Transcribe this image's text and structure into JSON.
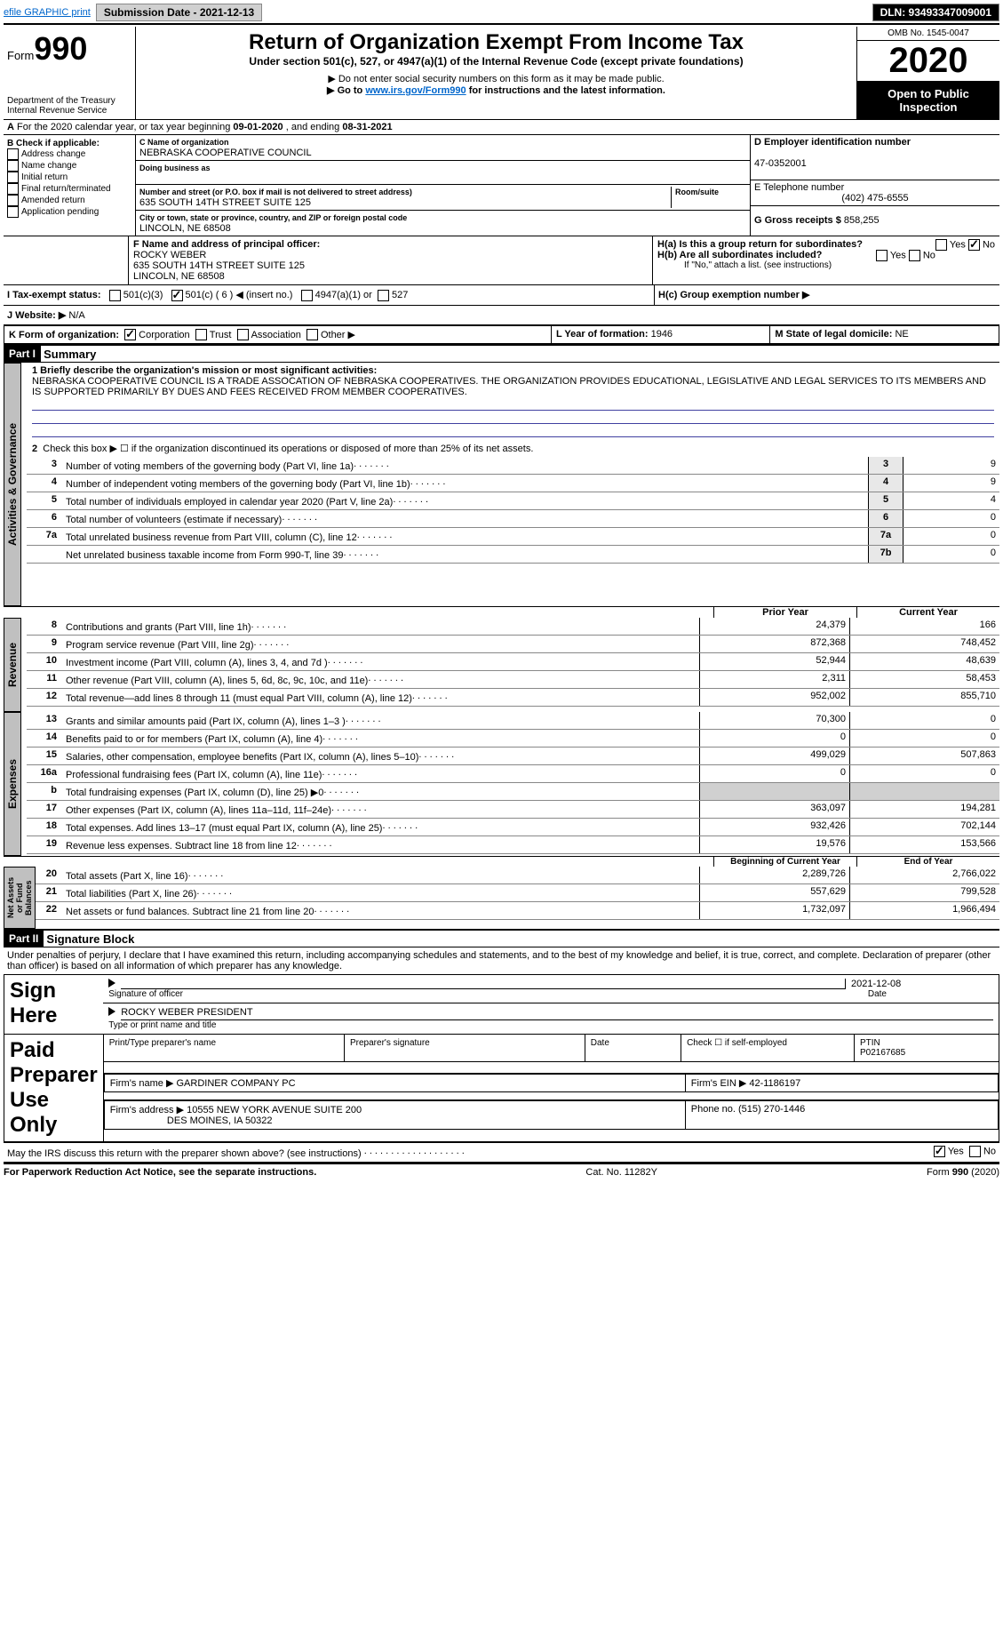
{
  "topbar": {
    "efile": "efile GRAPHIC print",
    "submission_label": "Submission Date - 2021-12-13",
    "dln_label": "DLN: 93493347009001"
  },
  "header": {
    "form_label": "Form",
    "form_number": "990",
    "dept1": "Department of the Treasury",
    "dept2": "Internal Revenue Service",
    "title": "Return of Organization Exempt From Income Tax",
    "subtitle": "Under section 501(c), 527, or 4947(a)(1) of the Internal Revenue Code (except private foundations)",
    "note1": "▶ Do not enter social security numbers on this form as it may be made public.",
    "note2_pre": "▶ Go to ",
    "note2_link": "www.irs.gov/Form990",
    "note2_post": " for instructions and the latest information.",
    "omb": "OMB No. 1545-0047",
    "year": "2020",
    "open_pub": "Open to Public Inspection"
  },
  "period": {
    "text_pre": "For the 2020 calendar year, or tax year beginning ",
    "begin": "09-01-2020",
    "text_mid": " , and ending ",
    "end": "08-31-2021",
    "label_a": "A"
  },
  "boxB": {
    "title": "B Check if applicable:",
    "opts": [
      "Address change",
      "Name change",
      "Initial return",
      "Final return/terminated",
      "Amended return",
      "Application pending"
    ]
  },
  "boxC": {
    "label": "C Name of organization",
    "name": "NEBRASKA COOPERATIVE COUNCIL",
    "dba_label": "Doing business as",
    "addr_label": "Number and street (or P.O. box if mail is not delivered to street address)",
    "room_label": "Room/suite",
    "addr": "635 SOUTH 14TH STREET SUITE 125",
    "city_label": "City or town, state or province, country, and ZIP or foreign postal code",
    "city": "LINCOLN, NE  68508"
  },
  "boxD": {
    "label": "D Employer identification number",
    "ein": "47-0352001"
  },
  "boxE": {
    "label": "E Telephone number",
    "phone": "(402) 475-6555"
  },
  "boxG": {
    "label": "G Gross receipts $",
    "val": "858,255"
  },
  "boxF": {
    "label": "F Name and address of principal officer:",
    "name": "ROCKY WEBER",
    "addr1": "635 SOUTH 14TH STREET SUITE 125",
    "addr2": "LINCOLN, NE  68508"
  },
  "boxH": {
    "ha": "H(a)  Is this a group return for subordinates?",
    "hb": "H(b)  Are all subordinates included?",
    "hb_note": "If \"No,\" attach a list. (see instructions)",
    "hc": "H(c)  Group exemption number ▶",
    "yes": "Yes",
    "no": "No"
  },
  "boxI": {
    "label": "I   Tax-exempt status:",
    "o1": "501(c)(3)",
    "o2": "501(c) ( 6 ) ◀ (insert no.)",
    "o3": "4947(a)(1) or",
    "o4": "527"
  },
  "boxJ": {
    "label": "J   Website: ▶",
    "val": "N/A"
  },
  "boxK": {
    "label": "K Form of organization:",
    "o1": "Corporation",
    "o2": "Trust",
    "o3": "Association",
    "o4": "Other ▶"
  },
  "boxL": {
    "label": "L Year of formation:",
    "val": "1946"
  },
  "boxM": {
    "label": "M State of legal domicile:",
    "val": "NE"
  },
  "part1": {
    "hdr": "Part I",
    "title": "Summary",
    "l1_label": "1  Briefly describe the organization's mission or most significant activities:",
    "l1_text": "NEBRASKA COOPERATIVE COUNCIL IS A TRADE ASSOCATION OF NEBRASKA COOPERATIVES. THE ORGANIZATION PROVIDES EDUCATIONAL, LEGISLATIVE AND LEGAL SERVICES TO ITS MEMBERS AND IS SUPPORTED PRIMARILY BY DUES AND FEES RECEIVED FROM MEMBER COOPERATIVES.",
    "l2": "Check this box ▶ ☐ if the organization discontinued its operations or disposed of more than 25% of its net assets.",
    "rows_gov": [
      {
        "n": "3",
        "t": "Number of voting members of the governing body (Part VI, line 1a)",
        "box": "3",
        "v": "9"
      },
      {
        "n": "4",
        "t": "Number of independent voting members of the governing body (Part VI, line 1b)",
        "box": "4",
        "v": "9"
      },
      {
        "n": "5",
        "t": "Total number of individuals employed in calendar year 2020 (Part V, line 2a)",
        "box": "5",
        "v": "4"
      },
      {
        "n": "6",
        "t": "Total number of volunteers (estimate if necessary)",
        "box": "6",
        "v": "0"
      },
      {
        "n": "7a",
        "t": "Total unrelated business revenue from Part VIII, column (C), line 12",
        "box": "7a",
        "v": "0"
      },
      {
        "n": "",
        "t": "Net unrelated business taxable income from Form 990-T, line 39",
        "box": "7b",
        "v": "0"
      }
    ],
    "col_prior": "Prior Year",
    "col_current": "Current Year",
    "rows_rev": [
      {
        "n": "8",
        "t": "Contributions and grants (Part VIII, line 1h)",
        "p": "24,379",
        "c": "166"
      },
      {
        "n": "9",
        "t": "Program service revenue (Part VIII, line 2g)",
        "p": "872,368",
        "c": "748,452"
      },
      {
        "n": "10",
        "t": "Investment income (Part VIII, column (A), lines 3, 4, and 7d )",
        "p": "52,944",
        "c": "48,639"
      },
      {
        "n": "11",
        "t": "Other revenue (Part VIII, column (A), lines 5, 6d, 8c, 9c, 10c, and 11e)",
        "p": "2,311",
        "c": "58,453"
      },
      {
        "n": "12",
        "t": "Total revenue—add lines 8 through 11 (must equal Part VIII, column (A), line 12)",
        "p": "952,002",
        "c": "855,710"
      }
    ],
    "rows_exp": [
      {
        "n": "13",
        "t": "Grants and similar amounts paid (Part IX, column (A), lines 1–3 )",
        "p": "70,300",
        "c": "0"
      },
      {
        "n": "14",
        "t": "Benefits paid to or for members (Part IX, column (A), line 4)",
        "p": "0",
        "c": "0"
      },
      {
        "n": "15",
        "t": "Salaries, other compensation, employee benefits (Part IX, column (A), lines 5–10)",
        "p": "499,029",
        "c": "507,863"
      },
      {
        "n": "16a",
        "t": "Professional fundraising fees (Part IX, column (A), line 11e)",
        "p": "0",
        "c": "0"
      },
      {
        "n": "b",
        "t": "Total fundraising expenses (Part IX, column (D), line 25) ▶0",
        "p": "",
        "c": ""
      },
      {
        "n": "17",
        "t": "Other expenses (Part IX, column (A), lines 11a–11d, 11f–24e)",
        "p": "363,097",
        "c": "194,281"
      },
      {
        "n": "18",
        "t": "Total expenses. Add lines 13–17 (must equal Part IX, column (A), line 25)",
        "p": "932,426",
        "c": "702,144"
      },
      {
        "n": "19",
        "t": "Revenue less expenses. Subtract line 18 from line 12",
        "p": "19,576",
        "c": "153,566"
      }
    ],
    "col_boy": "Beginning of Current Year",
    "col_eoy": "End of Year",
    "rows_net": [
      {
        "n": "20",
        "t": "Total assets (Part X, line 16)",
        "p": "2,289,726",
        "c": "2,766,022"
      },
      {
        "n": "21",
        "t": "Total liabilities (Part X, line 26)",
        "p": "557,629",
        "c": "799,528"
      },
      {
        "n": "22",
        "t": "Net assets or fund balances. Subtract line 21 from line 20",
        "p": "1,732,097",
        "c": "1,966,494"
      }
    ],
    "tab_gov": "Activities & Governance",
    "tab_rev": "Revenue",
    "tab_exp": "Expenses",
    "tab_net": "Net Assets or Fund Balances"
  },
  "part2": {
    "hdr": "Part II",
    "title": "Signature Block",
    "decl": "Under penalties of perjury, I declare that I have examined this return, including accompanying schedules and statements, and to the best of my knowledge and belief, it is true, correct, and complete. Declaration of preparer (other than officer) is based on all information of which preparer has any knowledge.",
    "sign_here": "Sign Here",
    "sig_officer": "Signature of officer",
    "date_lbl": "Date",
    "sig_date": "2021-12-08",
    "officer_name": "ROCKY WEBER  PRESIDENT",
    "type_name": "Type or print name and title",
    "paid": "Paid Preparer Use Only",
    "prep_name_lbl": "Print/Type preparer's name",
    "prep_sig_lbl": "Preparer's signature",
    "prep_date": "Date",
    "self_emp": "Check ☐ if self-employed",
    "ptin_lbl": "PTIN",
    "ptin": "P02167685",
    "firm_name_lbl": "Firm's name   ▶",
    "firm_name": "GARDINER COMPANY PC",
    "firm_ein_lbl": "Firm's EIN ▶",
    "firm_ein": "42-1186197",
    "firm_addr_lbl": "Firm's address ▶",
    "firm_addr1": "10555 NEW YORK AVENUE SUITE 200",
    "firm_addr2": "DES MOINES, IA  50322",
    "phone_lbl": "Phone no.",
    "phone": "(515) 270-1446",
    "discuss": "May the IRS discuss this return with the preparer shown above? (see instructions)",
    "yes": "Yes",
    "no": "No"
  },
  "footer": {
    "pra": "For Paperwork Reduction Act Notice, see the separate instructions.",
    "cat": "Cat. No. 11282Y",
    "form": "Form 990 (2020)"
  }
}
